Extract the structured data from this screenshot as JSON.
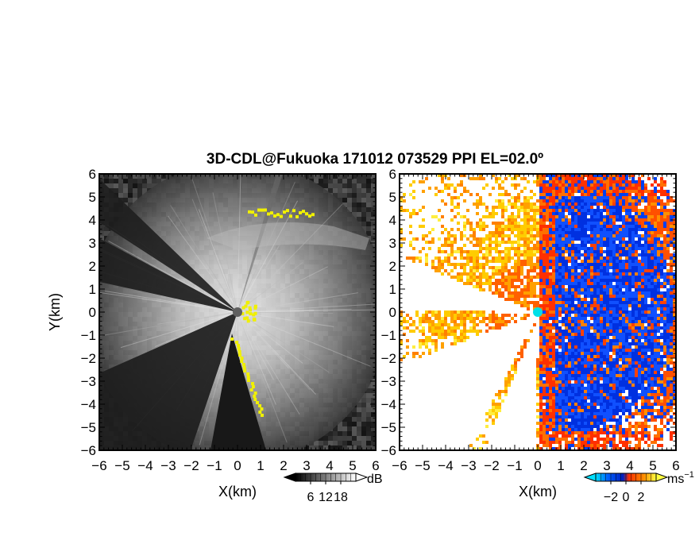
{
  "chart_data": [
    {
      "type": "heatmap",
      "title": "3D-CDL@Fukuoka 171012 073529 PPI EL=02.0º",
      "xlabel": "X(km)",
      "ylabel": "Y(km)",
      "xlim": [
        -6,
        6
      ],
      "ylim": [
        -6,
        6
      ],
      "x_ticks": [
        "−6",
        "−5",
        "−4",
        "−3",
        "−2",
        "−1",
        "0",
        "1",
        "2",
        "3",
        "4",
        "5",
        "6"
      ],
      "y_ticks": [
        "6",
        "5",
        "4",
        "3",
        "2",
        "1",
        "0",
        "−1",
        "−2",
        "−3",
        "−4",
        "−5",
        "−6"
      ],
      "colorbar": {
        "unit": "dB",
        "ticks": [
          "6",
          "12",
          "18"
        ],
        "range": [
          0,
          24
        ],
        "colormap": "grayscale"
      },
      "highlight_color": "#f0f000"
    },
    {
      "type": "heatmap",
      "xlabel": "X(km)",
      "xlim": [
        -6,
        6
      ],
      "ylim": [
        -6,
        6
      ],
      "x_ticks": [
        "−6",
        "−5",
        "−4",
        "−3",
        "−2",
        "−1",
        "0",
        "1",
        "2",
        "3",
        "4",
        "5",
        "6"
      ],
      "y_ticks": [
        "6",
        "5",
        "4",
        "3",
        "2",
        "1",
        "0",
        "−1",
        "−2",
        "−3",
        "−4",
        "−5",
        "−6"
      ],
      "colorbar": {
        "unit": "ms",
        "unit_exp": "−1",
        "ticks": [
          "−2",
          "0",
          "2"
        ],
        "range": [
          -4,
          4
        ],
        "colormap": "blue-red-yellow"
      },
      "radar_marker_color": "#00e0e8"
    }
  ]
}
